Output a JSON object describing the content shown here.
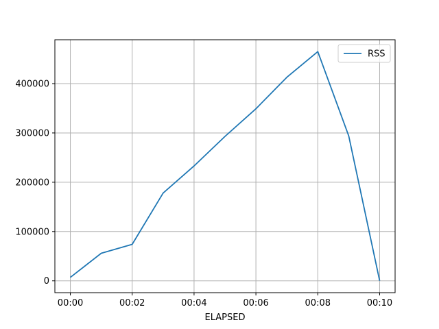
{
  "chart_data": {
    "type": "line",
    "xlabel": "ELAPSED",
    "ylabel": "",
    "title": "",
    "x": [
      "00:00",
      "00:01",
      "00:02",
      "00:03",
      "00:04",
      "00:05",
      "00:06",
      "00:07",
      "00:08",
      "00:09",
      "00:10"
    ],
    "x_tick_labels": [
      "00:00",
      "00:02",
      "00:04",
      "00:06",
      "00:08",
      "00:10"
    ],
    "series": [
      {
        "name": "RSS",
        "values": [
          7000,
          56000,
          74000,
          178000,
          233000,
          293000,
          349000,
          413000,
          465000,
          294000,
          0
        ]
      }
    ],
    "ylim": [
      -24000,
      489000
    ],
    "y_ticks": [
      0,
      100000,
      200000,
      300000,
      400000
    ],
    "y_tick_labels": [
      "0",
      "100000",
      "200000",
      "300000",
      "400000"
    ],
    "grid": true,
    "legend_position": "top-right",
    "colors": {
      "RSS": "#1f77b4",
      "grid": "#b0b0b0",
      "axes": "#000000"
    }
  }
}
